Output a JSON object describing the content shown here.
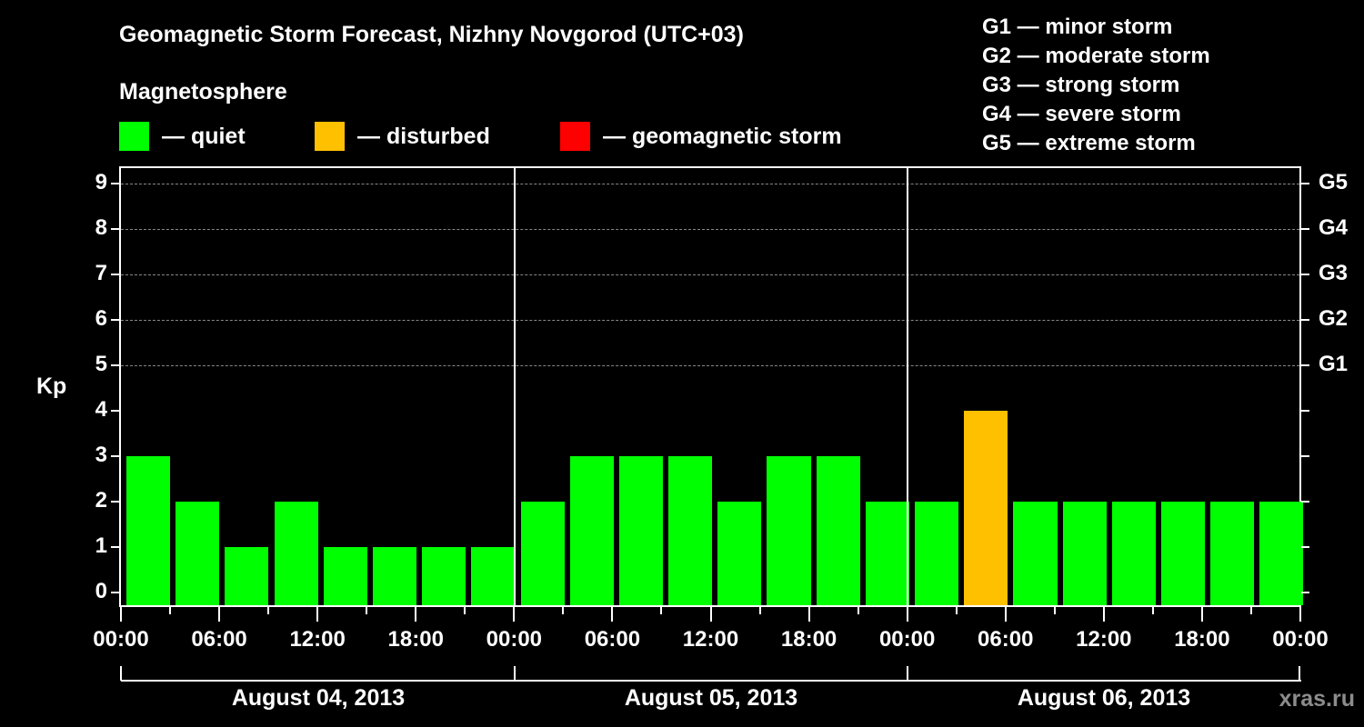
{
  "header": {
    "title": "Geomagnetic Storm Forecast, Nizhny Novgorod (UTC+03)",
    "subtitle": "Magnetosphere"
  },
  "legend": [
    {
      "label": "— quiet",
      "color": "#00ff00"
    },
    {
      "label": "— disturbed",
      "color": "#ffc000"
    },
    {
      "label": "— geomagnetic storm",
      "color": "#ff0000"
    }
  ],
  "gscale": [
    "G1 — minor storm",
    "G2 — moderate storm",
    "G3 — strong storm",
    "G4 — severe storm",
    "G5 — extreme storm"
  ],
  "watermark": "xras.ru",
  "chart_data": {
    "type": "bar",
    "title": "Geomagnetic Storm Forecast, Nizhny Novgorod (UTC+03)",
    "xlabel": "",
    "ylabel": "Kp",
    "ylim": [
      0,
      9
    ],
    "yticks": [
      0,
      1,
      2,
      3,
      4,
      5,
      6,
      7,
      8,
      9
    ],
    "right_axis_labels": {
      "5": "G1",
      "6": "G2",
      "7": "G3",
      "8": "G4",
      "9": "G5"
    },
    "grid": "dashed horizontal at Kp 5-9",
    "x_tick_labels": [
      "00:00",
      "06:00",
      "12:00",
      "18:00",
      "00:00",
      "06:00",
      "12:00",
      "18:00",
      "00:00",
      "06:00",
      "12:00",
      "18:00",
      "00:00"
    ],
    "date_labels": [
      "August 04, 2013",
      "August 05, 2013",
      "August 06, 2013"
    ],
    "categories": [
      "Aug 04 00-03",
      "Aug 04 03-06",
      "Aug 04 06-09",
      "Aug 04 09-12",
      "Aug 04 12-15",
      "Aug 04 15-18",
      "Aug 04 18-21",
      "Aug 04 21-24",
      "Aug 05 00-03",
      "Aug 05 03-06",
      "Aug 05 06-09",
      "Aug 05 09-12",
      "Aug 05 12-15",
      "Aug 05 15-18",
      "Aug 05 18-21",
      "Aug 05 21-24",
      "Aug 06 00-03",
      "Aug 06 03-06",
      "Aug 06 06-09",
      "Aug 06 09-12",
      "Aug 06 12-15",
      "Aug 06 15-18",
      "Aug 06 18-21",
      "Aug 06 21-24"
    ],
    "values": [
      3,
      2,
      1,
      2,
      1,
      1,
      1,
      1,
      2,
      3,
      3,
      3,
      2,
      3,
      3,
      2,
      2,
      4,
      2,
      2,
      2,
      2,
      2,
      2
    ],
    "status": [
      "quiet",
      "quiet",
      "quiet",
      "quiet",
      "quiet",
      "quiet",
      "quiet",
      "quiet",
      "quiet",
      "quiet",
      "quiet",
      "quiet",
      "quiet",
      "quiet",
      "quiet",
      "quiet",
      "quiet",
      "disturbed",
      "quiet",
      "quiet",
      "quiet",
      "quiet",
      "quiet",
      "quiet"
    ],
    "colors": {
      "quiet": "#00ff00",
      "disturbed": "#ffc000",
      "storm": "#ff0000"
    }
  }
}
